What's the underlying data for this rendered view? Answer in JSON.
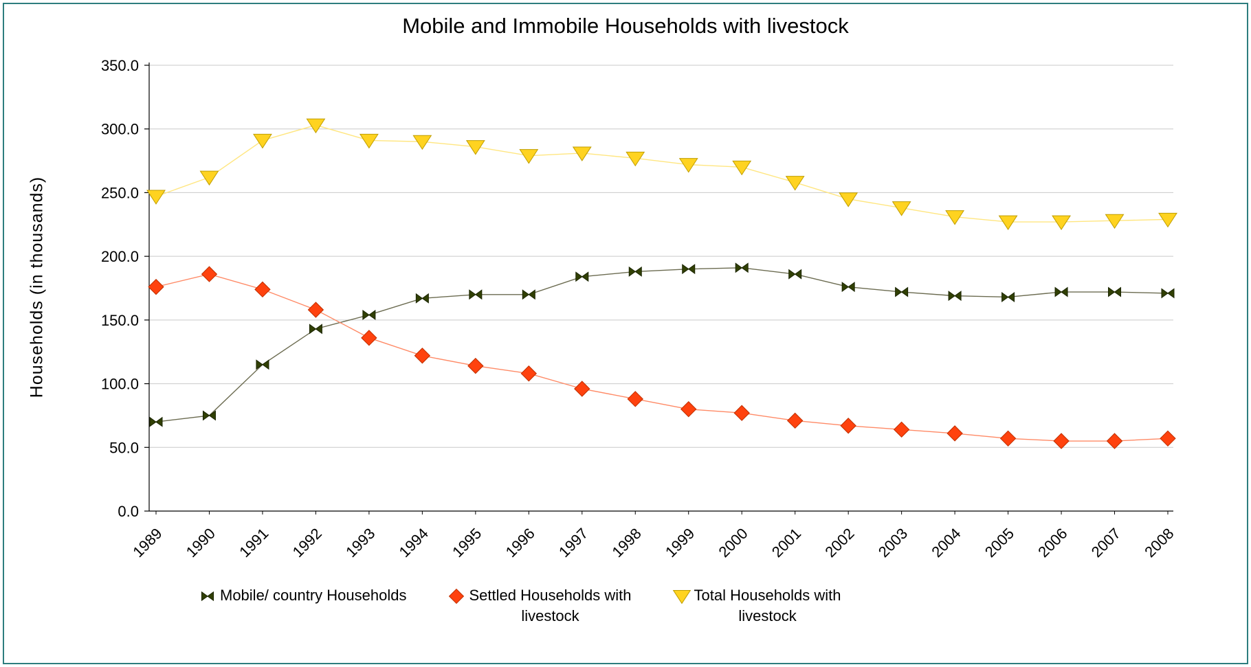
{
  "frame": {
    "border_color": "#2d7d7e",
    "background": "#ffffff"
  },
  "chart_data": {
    "type": "line",
    "title": "Mobile and Immobile Households with livestock",
    "ylabel": "Households (in thousands)",
    "xlabel": "",
    "ylim": [
      0,
      350
    ],
    "ytick_step": 50,
    "ytick_labels": [
      "0.0",
      "50.0",
      "100.0",
      "150.0",
      "200.0",
      "250.0",
      "300.0",
      "350.0"
    ],
    "grid": "horizontal",
    "gridline_color": "#c9c9c9",
    "axis_color": "#000000",
    "legend_position": "bottom",
    "categories": [
      "1989",
      "1990",
      "1991",
      "1992",
      "1993",
      "1994",
      "1995",
      "1996",
      "1997",
      "1998",
      "1999",
      "2000",
      "2001",
      "2002",
      "2003",
      "2004",
      "2005",
      "2006",
      "2007",
      "2008"
    ],
    "series": [
      {
        "name": "Mobile/ country Households",
        "legend_lines": [
          "Mobile/ country Households"
        ],
        "marker": "bowtie",
        "color": "#314004",
        "stroke": "#1a2400",
        "line_color": "#6b6b50",
        "values": [
          70,
          75,
          115,
          143,
          154,
          167,
          170,
          170,
          184,
          188,
          190,
          191,
          186,
          176,
          172,
          169,
          168,
          172,
          172,
          171
        ]
      },
      {
        "name": "Settled Households with livestock",
        "legend_lines": [
          "Settled Households with",
          "livestock"
        ],
        "marker": "diamond",
        "color": "#FF420E",
        "stroke": "#bf2f00",
        "line_color": "#ff8a66",
        "values": [
          176,
          186,
          174,
          158,
          136,
          122,
          114,
          108,
          96,
          88,
          80,
          77,
          71,
          67,
          64,
          61,
          57,
          55,
          55,
          57
        ]
      },
      {
        "name": "Total Households with livestock",
        "legend_lines": [
          "Total Households with",
          "livestock"
        ],
        "marker": "triangle-down",
        "color": "#FFD320",
        "stroke": "#bf9d00",
        "line_color": "#ffe680",
        "values": [
          247,
          262,
          291,
          303,
          291,
          290,
          286,
          279,
          281,
          277,
          272,
          270,
          258,
          245,
          238,
          231,
          227,
          227,
          228,
          229
        ]
      }
    ]
  }
}
